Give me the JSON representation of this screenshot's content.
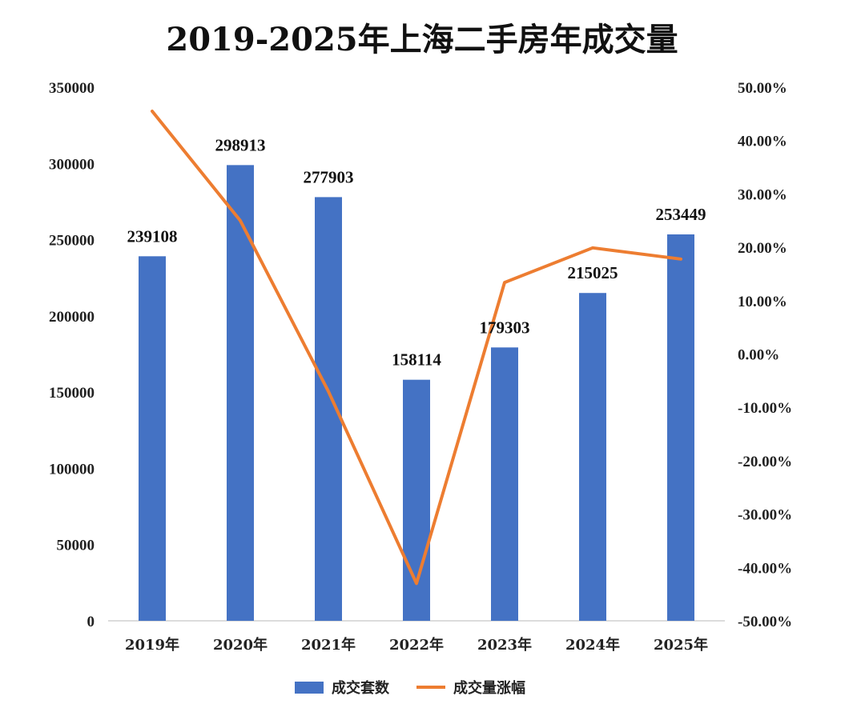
{
  "chart_data": {
    "type": "bar",
    "title": "2019-2025年上海二手房年成交量",
    "categories": [
      "2019年",
      "2020年",
      "2021年",
      "2022年",
      "2023年",
      "2024年",
      "2025年"
    ],
    "series": [
      {
        "name": "成交套数",
        "type": "bar",
        "axis": "left",
        "color": "#4472C4",
        "values": [
          239108,
          298913,
          277903,
          158114,
          179303,
          215025,
          253449
        ],
        "labels": [
          "239108",
          "298913",
          "277903",
          "158114",
          "179303",
          "215025",
          "253449"
        ]
      },
      {
        "name": "成交量涨幅",
        "type": "line",
        "axis": "right",
        "color": "#ED7D31",
        "values": [
          0.455,
          0.25,
          -0.07,
          -0.43,
          0.134,
          0.199,
          0.178
        ]
      }
    ],
    "y_left": {
      "min": 0,
      "max": 350000,
      "ticks": [
        0,
        50000,
        100000,
        150000,
        200000,
        250000,
        300000,
        350000
      ],
      "tick_labels": [
        "0",
        "50000",
        "100000",
        "150000",
        "200000",
        "250000",
        "300000",
        "350000"
      ]
    },
    "y_right": {
      "min": -0.5,
      "max": 0.5,
      "ticks": [
        0.5,
        0.4,
        0.3,
        0.2,
        0.1,
        0,
        -0.1,
        -0.2,
        -0.3,
        -0.4,
        -0.5
      ],
      "tick_labels": [
        "50.00%",
        "40.00%",
        "30.00%",
        "20.00%",
        "10.00%",
        "0.00%",
        "-10.00%",
        "-20.00%",
        "-30.00%",
        "-40.00%",
        "-50.00%"
      ]
    },
    "grid": false,
    "legend_position": "bottom",
    "legend": [
      {
        "label": "成交套数",
        "marker": "box",
        "color": "#4472C4"
      },
      {
        "label": "成交量涨幅",
        "marker": "line",
        "color": "#ED7D31"
      }
    ]
  }
}
